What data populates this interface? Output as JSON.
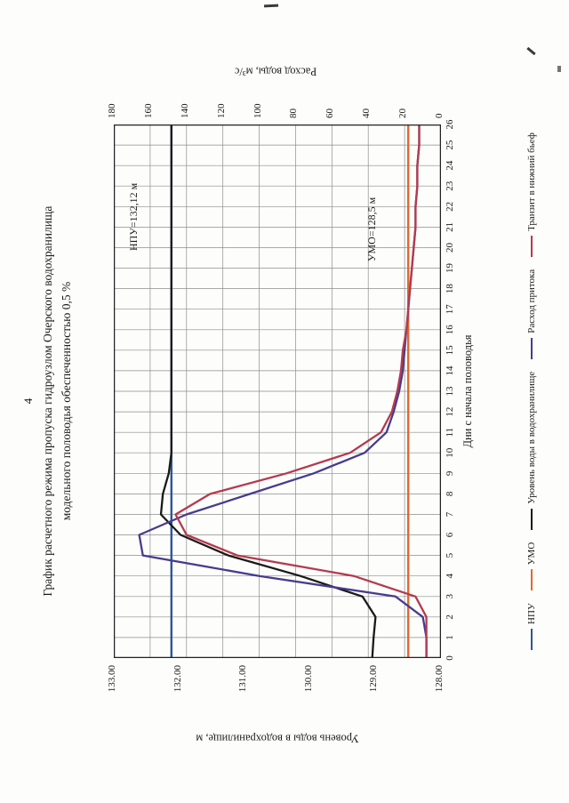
{
  "page": {
    "number": "4"
  },
  "title": {
    "line1": "График расчетного режима пропуска гидроузлом Очерского водохранилища",
    "line2": "модельного половодья обеспеченностью 0,5 %"
  },
  "chart_data": {
    "type": "line",
    "title": "График расчетного режима пропуска гидроузлом Очерского водохранилища модельного половодья обеспеченностью 0,5 %",
    "xlabel": "Дни с начала половодья",
    "ylabel_left": "Уровень воды в водохранилище, м",
    "ylabel_right": "Расход воды, м³/с",
    "x": [
      0,
      1,
      2,
      3,
      4,
      5,
      6,
      7,
      8,
      9,
      10,
      11,
      12,
      13,
      14,
      15,
      16,
      17,
      18,
      19,
      20,
      21,
      22,
      23,
      24,
      25,
      26
    ],
    "ylim_left": [
      128,
      133
    ],
    "ylim_right": [
      0,
      180
    ],
    "left_ticks": [
      "133.00",
      "132.00",
      "131.00",
      "130.00",
      "129.00",
      "128.00"
    ],
    "right_ticks": [
      "180",
      "160",
      "140",
      "120",
      "100",
      "80",
      "60",
      "40",
      "20",
      "0"
    ],
    "grid": true,
    "legend_position": "bottom",
    "colors": {
      "grid": "#8d8d8d",
      "border": "#222222"
    },
    "series": [
      {
        "name": "НПУ",
        "axis": "left",
        "color": "#2f5597",
        "const": 132.12,
        "label": "НПУ=132,12 м"
      },
      {
        "name": "УМО",
        "axis": "left",
        "color": "#df6a2e",
        "const": 128.5,
        "label": "УМО=128,5 м"
      },
      {
        "name": "Уровень воды в водохранилище",
        "axis": "left",
        "color": "#1a1a1a",
        "values": [
          129.05,
          129.03,
          129.0,
          129.2,
          130.15,
          131.25,
          131.98,
          132.28,
          132.25,
          132.16,
          132.12,
          132.12,
          132.12,
          132.12,
          132.12,
          132.12,
          132.12,
          132.12,
          132.12,
          132.12,
          132.12,
          132.12,
          132.12,
          132.12,
          132.12,
          132.12,
          132.12
        ]
      },
      {
        "name": "Расход притока",
        "axis": "right",
        "color": "#473b8f",
        "values": [
          8,
          8,
          10,
          25,
          100,
          164,
          166,
          140,
          105,
          70,
          42,
          30,
          26,
          23,
          21,
          20,
          19,
          18,
          17,
          16,
          15,
          14,
          14,
          13,
          13,
          12,
          12
        ]
      },
      {
        "name": "Транзит в нижний бьеф",
        "axis": "right",
        "color": "#b43a4e",
        "values": [
          8,
          8,
          8,
          14,
          48,
          112,
          140,
          146,
          127,
          85,
          50,
          33,
          27,
          24,
          22,
          21,
          19,
          18,
          17,
          16,
          15,
          14,
          14,
          13,
          13,
          12,
          12
        ]
      }
    ]
  }
}
